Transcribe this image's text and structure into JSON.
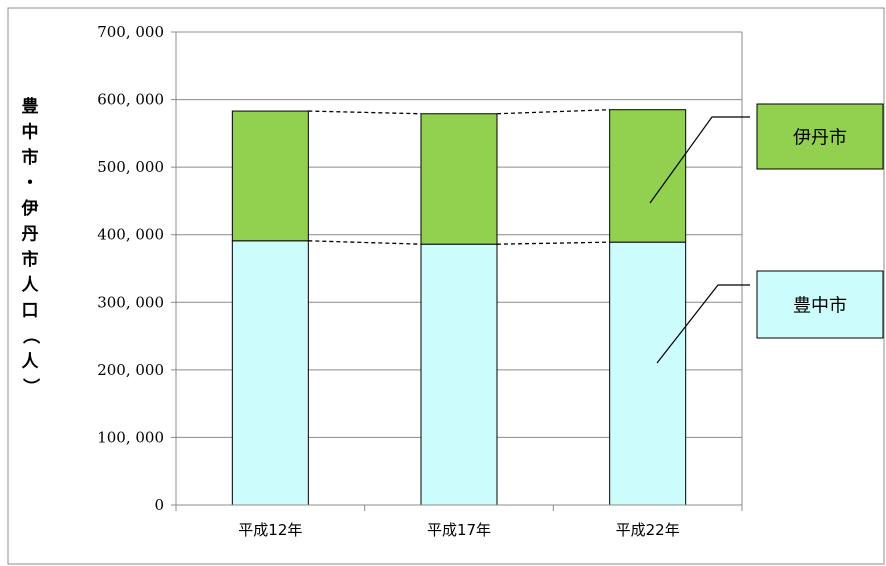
{
  "chart_data": {
    "type": "bar",
    "stacked": true,
    "categories": [
      "平成12年",
      "平成17年",
      "平成22年"
    ],
    "series": [
      {
        "name": "豊中市",
        "values": [
          391000,
          386000,
          389000
        ],
        "color": "#ccfcfc"
      },
      {
        "name": "伊丹市",
        "values": [
          192000,
          193000,
          196000
        ],
        "color": "#92d050"
      }
    ],
    "ylabel": "豊中市・伊丹市人口（人）",
    "ylim": [
      0,
      700000
    ],
    "yticks": [
      "0",
      "100, 000",
      "200, 000",
      "300, 000",
      "400, 000",
      "500, 000",
      "600, 000",
      "700, 000"
    ],
    "grid": true,
    "legend": "callout-right"
  }
}
